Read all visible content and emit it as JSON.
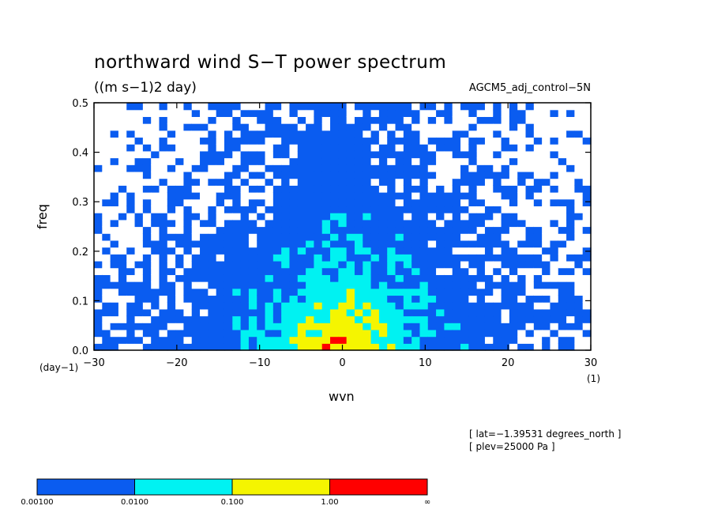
{
  "chart_data": {
    "type": "heatmap",
    "title": "northward wind S−T power spectrum",
    "subtitle": "((m s−1)2 day)",
    "run_label": "AGCM5_adj_control−5N",
    "xlabel": "wvn",
    "ylabel": "freq",
    "x_unit": "(1)",
    "y_unit": "(day−1)",
    "xlim": [
      -30,
      30
    ],
    "ylim": [
      0.0,
      0.5
    ],
    "x_ticks": [
      "−30",
      "−20",
      "−10",
      "0",
      "10",
      "20",
      "30"
    ],
    "x_tick_values": [
      -30,
      -20,
      -10,
      0,
      10,
      20,
      30
    ],
    "y_ticks": [
      "0.0",
      "0.1",
      "0.2",
      "0.3",
      "0.4",
      "0.5"
    ],
    "y_tick_values": [
      0.0,
      0.1,
      0.2,
      0.3,
      0.4,
      0.5
    ],
    "levels": [
      "0.00100",
      "0.0100",
      "0.100",
      "1.00",
      "∞"
    ],
    "level_colors": [
      "#0a5cf0",
      "#00f2f2",
      "#f5f500",
      "#ff0000"
    ],
    "low_color": "#ffffff",
    "info": [
      "[ lat=−1.39531 degrees_north ]",
      "[ plev=25000 Pa ]"
    ]
  }
}
